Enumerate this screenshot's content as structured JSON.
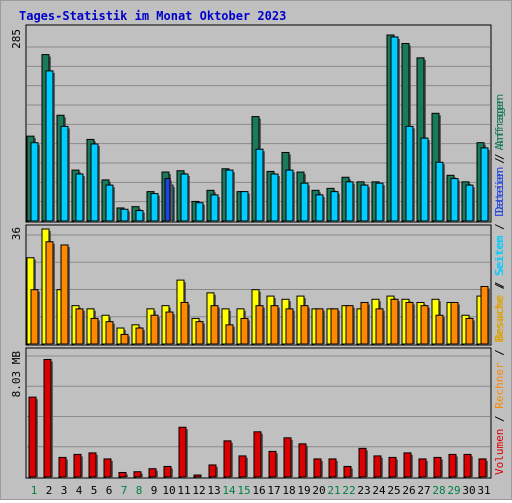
{
  "title": "Tages-Statistik im Monat Oktober 2023",
  "colors": {
    "background": "#c0c0c0",
    "grid": "#8a8a8a",
    "title": "#0000cc",
    "anfragen": "#1a7a5a",
    "dateien": "#00ccff",
    "seiten": "#00aaff",
    "besuche": "#ffff00",
    "rechner": "#ff8800",
    "volumen": "#dd0000",
    "weekend_label": "#008040",
    "weekday_label": "#000000"
  },
  "chart_data": [
    {
      "type": "bar",
      "name": "top",
      "ymax_label": "285",
      "ymax": 285,
      "side_label_parts": [
        "Dateien",
        "/",
        "Anfragen"
      ],
      "series": [
        {
          "name": "Anfragen",
          "values": [
            130,
            255,
            162,
            78,
            125,
            63,
            20,
            22,
            45,
            75,
            77,
            30,
            47,
            80,
            45,
            160,
            76,
            105,
            75,
            47,
            50,
            67,
            60,
            60,
            285,
            272,
            250,
            165,
            70,
            60,
            120
          ]
        },
        {
          "name": "Dateien",
          "values": [
            120,
            230,
            145,
            72,
            118,
            55,
            18,
            16,
            42,
            55,
            72,
            28,
            40,
            78,
            45,
            110,
            72,
            78,
            58,
            40,
            45,
            60,
            55,
            58,
            282,
            145,
            127,
            90,
            65,
            55,
            112
          ]
        },
        {
          "name": "Seiten",
          "values": [
            0,
            0,
            0,
            0,
            0,
            0,
            0,
            0,
            0,
            65,
            0,
            0,
            0,
            0,
            0,
            0,
            0,
            0,
            0,
            0,
            0,
            0,
            0,
            0,
            0,
            0,
            0,
            0,
            0,
            0,
            0
          ]
        }
      ]
    },
    {
      "type": "bar",
      "name": "middle",
      "ymax_label": "36",
      "ymax": 36,
      "side_label_parts": [
        "Besuche",
        "/",
        "Seiten"
      ],
      "series": [
        {
          "name": "Besuche",
          "values": [
            27,
            36,
            17,
            12,
            11,
            9,
            5,
            6,
            11,
            12,
            20,
            8,
            16,
            11,
            11,
            17,
            15,
            14,
            15,
            11,
            11,
            12,
            11,
            14,
            15,
            14,
            13,
            14,
            13,
            9,
            15
          ]
        },
        {
          "name": "Rechner",
          "values": [
            17,
            32,
            31,
            11,
            8,
            7,
            3,
            5,
            9,
            10,
            13,
            7,
            12,
            6,
            8,
            12,
            12,
            11,
            12,
            11,
            11,
            12,
            13,
            11,
            14,
            13,
            12,
            9,
            13,
            8,
            18
          ]
        }
      ]
    },
    {
      "type": "bar",
      "name": "bottom",
      "ymax_label": "8.03 MB",
      "ymax": 8.03,
      "side_label_parts": [
        "Volumen",
        "/",
        "Rechner",
        "/",
        "Besuche",
        "/",
        "Seiten",
        "/",
        "Dateien",
        "/",
        "Anfragen"
      ],
      "series": [
        {
          "name": "Volumen",
          "values": [
            5.3,
            7.8,
            1.3,
            1.5,
            1.6,
            1.2,
            0.3,
            0.35,
            0.55,
            0.7,
            3.3,
            0.05,
            0.8,
            2.4,
            1.4,
            3.0,
            1.7,
            2.6,
            2.2,
            1.2,
            1.2,
            0.7,
            1.9,
            1.4,
            1.3,
            1.6,
            1.2,
            1.3,
            1.5,
            1.5,
            1.2
          ]
        }
      ]
    }
  ],
  "days": [
    "1",
    "2",
    "3",
    "4",
    "5",
    "6",
    "7",
    "8",
    "9",
    "10",
    "11",
    "12",
    "13",
    "14",
    "15",
    "16",
    "17",
    "18",
    "19",
    "20",
    "21",
    "22",
    "23",
    "24",
    "25",
    "26",
    "27",
    "28",
    "29",
    "30",
    "31"
  ],
  "weekend_days": [
    "1",
    "7",
    "8",
    "14",
    "15",
    "21",
    "22",
    "28",
    "29"
  ]
}
